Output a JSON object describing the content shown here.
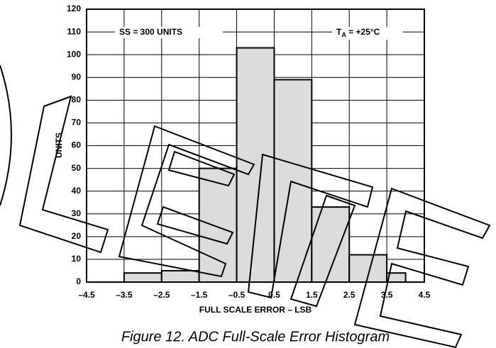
{
  "chart_data": {
    "type": "histogram",
    "y_label": "UNITS",
    "x_label": "FULL SCALE ERROR – LSB",
    "caption": "Figure 12. ADC Full-Scale Error Histogram",
    "annotation_left": "SS = 300 UNITS",
    "annotation_right": {
      "main": "T",
      "sub": "A",
      "rest": " = +25°C"
    },
    "bins": [
      -3.5,
      -2.5,
      -1.5,
      -0.5,
      0.5,
      1.5,
      2.5,
      3.5,
      4.0
    ],
    "values": [
      4,
      5,
      50,
      103,
      89,
      33,
      12,
      4
    ],
    "color": "#dcdcdc",
    "xlim": [
      -4.5,
      4.5
    ],
    "xticks": [
      {
        "value": -4.5,
        "label": "–4.5"
      },
      {
        "value": -3.5,
        "label": "–3.5"
      },
      {
        "value": -2.5,
        "label": "–2.5"
      },
      {
        "value": -1.5,
        "label": "–1.5"
      },
      {
        "value": -0.5,
        "label": "–0.5"
      },
      0.5,
      1.5,
      2.5,
      3.5,
      4.5
    ],
    "ylim": [
      0,
      120
    ],
    "yticks": [
      0,
      10,
      20,
      30,
      40,
      50,
      60,
      70,
      80,
      90,
      100,
      110,
      120
    ],
    "grid": true
  }
}
